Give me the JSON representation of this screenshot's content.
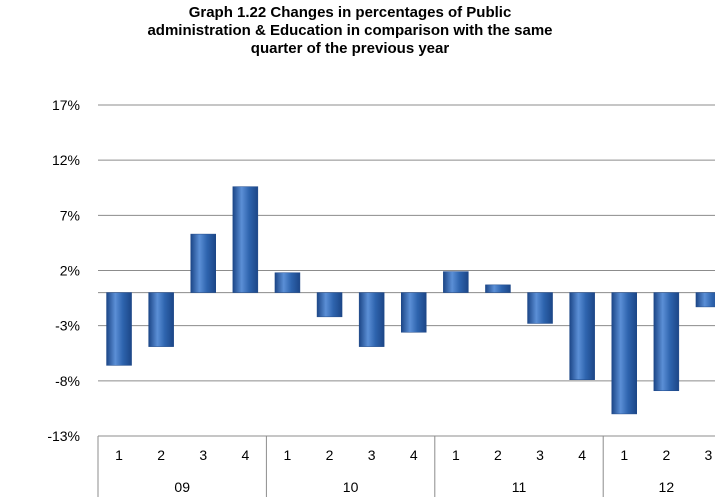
{
  "chart_data": {
    "type": "bar",
    "title_lines": [
      "Graph 1.22 Changes in percentages of Public",
      "administration & Education in comparison with the same",
      "quarter of the previous year"
    ],
    "categories": [
      "1",
      "2",
      "3",
      "4",
      "1",
      "2",
      "3",
      "4",
      "1",
      "2",
      "3",
      "4",
      "1",
      "2",
      "3"
    ],
    "groups": [
      {
        "label": "09",
        "size": 4
      },
      {
        "label": "10",
        "size": 4
      },
      {
        "label": "11",
        "size": 4
      },
      {
        "label": "12",
        "size": 3
      }
    ],
    "series": [
      {
        "values": [
          -6.6,
          -4.9,
          5.3,
          9.6,
          1.8,
          -2.2,
          -4.9,
          -3.6,
          1.9,
          0.7,
          -2.8,
          -7.9,
          -11.0,
          -8.9,
          -1.3
        ]
      }
    ],
    "yticks": [
      "17%",
      "12%",
      "7%",
      "2%",
      "-3%",
      "-8%",
      "-13%"
    ],
    "ylim": [
      -13,
      17
    ],
    "grid": true,
    "bar_color": "#2E64AE",
    "bar_highlight": "#5B8FD6",
    "bar_shadow": "#1C4687"
  }
}
